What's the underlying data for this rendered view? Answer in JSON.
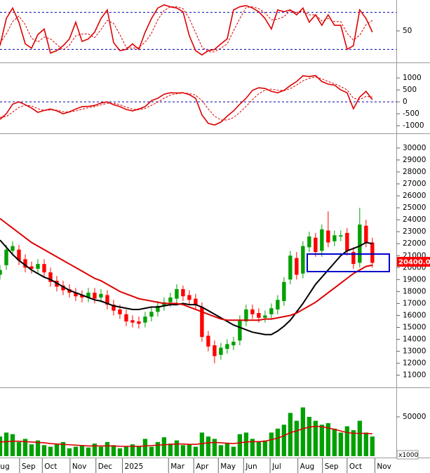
{
  "chart_data": [
    {
      "type": "line",
      "x": [
        0,
        1,
        2,
        3,
        4,
        5,
        6,
        7,
        8,
        9,
        10,
        11,
        12,
        13,
        14,
        15,
        16,
        17,
        18,
        19,
        20,
        21,
        22,
        23,
        24,
        25,
        26,
        27,
        28,
        29,
        30,
        31,
        32,
        33,
        34,
        35,
        36,
        37,
        38,
        39,
        40,
        41,
        42,
        43,
        44,
        45,
        46,
        47,
        48,
        49,
        50,
        51,
        52,
        53,
        54,
        55,
        56,
        57,
        58,
        59
      ],
      "xlim": [
        0,
        62.8
      ],
      "ylim": [
        0,
        100
      ],
      "yticks": [
        50
      ],
      "levels": [
        20,
        80
      ],
      "level_color": "#0000aa",
      "series": [
        {
          "color": "#dd0000",
          "values": [
            26,
            70,
            87,
            64,
            29,
            22,
            44,
            53,
            14,
            18,
            26,
            37,
            64,
            33,
            37,
            48,
            70,
            84,
            31,
            18,
            20,
            29,
            20,
            48,
            70,
            87,
            92,
            89,
            87,
            81,
            42,
            18,
            11,
            18,
            20,
            29,
            37,
            84,
            89,
            91,
            87,
            81,
            70,
            53,
            84,
            81,
            84,
            76,
            87,
            64,
            76,
            59,
            76,
            59,
            59,
            20,
            26,
            84,
            70,
            48
          ]
        },
        {
          "color": "#dd0000",
          "dashed": true,
          "values": [
            30,
            45,
            65,
            74,
            60,
            38,
            32,
            40,
            37,
            28,
            19,
            27,
            42,
            45,
            45,
            39,
            52,
            67,
            62,
            44,
            23,
            22,
            23,
            32,
            46,
            68,
            83,
            89,
            89,
            86,
            70,
            47,
            24,
            16,
            16,
            22,
            29,
            50,
            70,
            88,
            89,
            86,
            79,
            68,
            69,
            73,
            83,
            80,
            82,
            76,
            76,
            66,
            70,
            65,
            65,
            46,
            35,
            43,
            60,
            67
          ]
        }
      ]
    },
    {
      "type": "line",
      "x": [
        0,
        1,
        2,
        3,
        4,
        5,
        6,
        7,
        8,
        9,
        10,
        11,
        12,
        13,
        14,
        15,
        16,
        17,
        18,
        19,
        20,
        21,
        22,
        23,
        24,
        25,
        26,
        27,
        28,
        29,
        30,
        31,
        32,
        33,
        34,
        35,
        36,
        37,
        38,
        39,
        40,
        41,
        42,
        43,
        44,
        45,
        46,
        47,
        48,
        49,
        50,
        51,
        52,
        53,
        54,
        55,
        56,
        57,
        58,
        59
      ],
      "xlim": [
        0,
        62.8
      ],
      "ylim": [
        -1260,
        1560
      ],
      "yticks": [
        1000,
        500,
        0,
        -500,
        -1000
      ],
      "levels": [
        0
      ],
      "level_color": "#0000aa",
      "series": [
        {
          "color": "#dd0000",
          "values": [
            -735,
            -500,
            -100,
            0,
            -120,
            -260,
            -440,
            -360,
            -300,
            -380,
            -500,
            -420,
            -300,
            -200,
            -190,
            -150,
            -50,
            0,
            -120,
            -200,
            -320,
            -380,
            -300,
            -200,
            50,
            150,
            320,
            380,
            370,
            380,
            300,
            150,
            -550,
            -900,
            -970,
            -850,
            -600,
            -380,
            -100,
            150,
            480,
            590,
            560,
            440,
            380,
            480,
            680,
            850,
            1090,
            1060,
            1100,
            850,
            740,
            700,
            500,
            380,
            -290,
            200,
            440,
            90
          ]
        },
        {
          "color": "#dd0000",
          "dashed": true,
          "values": [
            -650,
            -620,
            -430,
            -230,
            -140,
            -170,
            -290,
            -360,
            -340,
            -350,
            -410,
            -430,
            -380,
            -310,
            -250,
            -200,
            -130,
            -60,
            -60,
            -120,
            -220,
            -310,
            -330,
            -280,
            -150,
            -10,
            150,
            280,
            340,
            370,
            350,
            280,
            50,
            -300,
            -600,
            -760,
            -760,
            -660,
            -440,
            -190,
            90,
            340,
            490,
            530,
            490,
            470,
            550,
            700,
            880,
            980,
            1040,
            960,
            850,
            760,
            640,
            500,
            150,
            100,
            230,
            200
          ]
        }
      ]
    },
    {
      "type": "candlestick",
      "x": [
        0,
        1,
        2,
        3,
        4,
        5,
        6,
        7,
        8,
        9,
        10,
        11,
        12,
        13,
        14,
        15,
        16,
        17,
        18,
        19,
        20,
        21,
        22,
        23,
        24,
        25,
        26,
        27,
        28,
        29,
        30,
        31,
        32,
        33,
        34,
        35,
        36,
        37,
        38,
        39,
        40,
        41,
        42,
        43,
        44,
        45,
        46,
        47,
        48,
        49,
        50,
        51,
        52,
        53,
        54,
        55,
        56,
        57,
        58,
        59
      ],
      "xlim": [
        0,
        62.8
      ],
      "ylim": [
        10100,
        31050
      ],
      "yticks": [
        11000,
        12000,
        13000,
        14000,
        15000,
        16000,
        17000,
        18000,
        19000,
        20000,
        21000,
        22000,
        23000,
        24000,
        25000,
        26000,
        27000,
        28000,
        29000,
        30000
      ],
      "up_color": "#00a000",
      "down_color": "#ff0000",
      "open": [
        19400,
        20200,
        21400,
        21500,
        20700,
        20100,
        19900,
        20300,
        19600,
        18900,
        18500,
        18200,
        17900,
        17700,
        17500,
        17900,
        17500,
        17700,
        16900,
        16500,
        16100,
        15600,
        15500,
        15400,
        15900,
        16300,
        16800,
        17100,
        17400,
        18200,
        17700,
        17400,
        16700,
        14300,
        13500,
        12700,
        13200,
        13500,
        13900,
        15500,
        16500,
        16200,
        15800,
        16100,
        16500,
        17200,
        19000,
        20800,
        19500,
        21700,
        22500,
        21400,
        23100,
        22200,
        22600,
        22900,
        21300,
        20400,
        23500,
        22100
      ],
      "high": [
        20200,
        21900,
        22200,
        21900,
        21100,
        20500,
        20700,
        20700,
        20000,
        19300,
        18900,
        18600,
        18300,
        18100,
        18300,
        18300,
        18200,
        18100,
        17300,
        16900,
        16500,
        16000,
        15900,
        16300,
        16700,
        17200,
        17500,
        17900,
        18600,
        18500,
        18100,
        17800,
        17100,
        14700,
        13900,
        13700,
        14000,
        14200,
        16000,
        16900,
        16900,
        16600,
        16400,
        17000,
        17700,
        19200,
        21400,
        21300,
        22200,
        23000,
        22900,
        23600,
        24700,
        23100,
        23100,
        23300,
        21700,
        25000,
        24000,
        22500
      ],
      "low": [
        19000,
        19800,
        21000,
        20200,
        19600,
        19500,
        19500,
        19200,
        18400,
        18000,
        17700,
        17500,
        17200,
        17100,
        17100,
        17000,
        17100,
        16500,
        16000,
        15700,
        15100,
        15000,
        14900,
        15000,
        15500,
        15900,
        16400,
        16700,
        17000,
        17200,
        16900,
        16500,
        13800,
        13000,
        12000,
        12300,
        12800,
        13100,
        13500,
        15100,
        15700,
        15400,
        15400,
        15700,
        16100,
        16800,
        18600,
        19000,
        19100,
        21300,
        20900,
        20900,
        21700,
        21800,
        22200,
        21000,
        19900,
        20000,
        21700,
        20000
      ],
      "close": [
        19800,
        21500,
        21800,
        20600,
        20000,
        19900,
        20300,
        19600,
        18800,
        18400,
        18100,
        17900,
        17600,
        17500,
        17900,
        17400,
        17800,
        16900,
        16400,
        16100,
        15500,
        15400,
        15300,
        15900,
        16300,
        16800,
        17100,
        17500,
        18200,
        17600,
        17300,
        16900,
        14200,
        13400,
        12600,
        13300,
        13600,
        13800,
        15600,
        16500,
        16100,
        15800,
        16000,
        16600,
        17300,
        18800,
        21000,
        19400,
        21800,
        22600,
        21300,
        23200,
        22100,
        22700,
        22700,
        21400,
        20300,
        23600,
        22100,
        20400
      ],
      "series": [
        {
          "color": "#000000",
          "values": [
            22300,
            21700,
            21100,
            20600,
            20200,
            19800,
            19500,
            19200,
            19000,
            18700,
            18400,
            18100,
            17900,
            17700,
            17500,
            17300,
            17200,
            17000,
            16800,
            16700,
            16600,
            16500,
            16500,
            16600,
            16700,
            16700,
            16800,
            16900,
            16900,
            17000,
            16900,
            16900,
            16700,
            16400,
            16100,
            15800,
            15500,
            15200,
            15000,
            14800,
            14600,
            14500,
            14400,
            14400,
            14700,
            15100,
            15600,
            16300,
            17000,
            17800,
            18600,
            19200,
            19800,
            20400,
            21000,
            21400,
            21600,
            21800,
            22100,
            22000
          ]
        },
        {
          "color": "#dd0000",
          "values": [
            24100,
            23700,
            23300,
            22900,
            22500,
            22100,
            21800,
            21500,
            21200,
            20900,
            20600,
            20300,
            20000,
            19700,
            19400,
            19100,
            18900,
            18600,
            18300,
            18000,
            17800,
            17600,
            17400,
            17300,
            17200,
            17100,
            17000,
            17000,
            17000,
            16900,
            16700,
            16500,
            16300,
            16100,
            15900,
            15700,
            15600,
            15600,
            15600,
            15600,
            15600,
            15600,
            15700,
            15700,
            15800,
            15900,
            16000,
            16200,
            16500,
            16800,
            17100,
            17500,
            17900,
            18300,
            18700,
            19100,
            19500,
            19800,
            20100,
            20200
          ]
        }
      ],
      "last_label": "20400.00"
    },
    {
      "type": "bar",
      "x": [
        0,
        1,
        2,
        3,
        4,
        5,
        6,
        7,
        8,
        9,
        10,
        11,
        12,
        13,
        14,
        15,
        16,
        17,
        18,
        19,
        20,
        21,
        22,
        23,
        24,
        25,
        26,
        27,
        28,
        29,
        30,
        31,
        32,
        33,
        34,
        35,
        36,
        37,
        38,
        39,
        40,
        41,
        42,
        43,
        44,
        45,
        46,
        47,
        48,
        49,
        50,
        51,
        52,
        53,
        54,
        55,
        56,
        57,
        58,
        59
      ],
      "xlim": [
        0,
        62.8
      ],
      "ylim": [
        0,
        84800
      ],
      "yticks": [
        50000
      ],
      "color": "#00a000",
      "values": [
        25000,
        30000,
        28000,
        18000,
        22000,
        15000,
        20000,
        14000,
        12000,
        15000,
        18000,
        10000,
        12000,
        14000,
        11000,
        16000,
        12000,
        18000,
        14000,
        10000,
        12000,
        15000,
        13000,
        22000,
        12000,
        18000,
        24000,
        16000,
        20000,
        14000,
        15000,
        12000,
        30000,
        25000,
        22000,
        14000,
        16000,
        12000,
        28000,
        30000,
        22000,
        18000,
        20000,
        30000,
        35000,
        40000,
        55000,
        45000,
        62000,
        50000,
        45000,
        40000,
        42000,
        35000,
        30000,
        38000,
        33000,
        45000,
        30000,
        25000
      ],
      "series": [
        {
          "color": "#dd0000",
          "values": [
            18000,
            18500,
            19000,
            19000,
            18500,
            18000,
            17500,
            17000,
            16000,
            15500,
            15000,
            14500,
            14000,
            13500,
            13000,
            13000,
            13000,
            13000,
            13000,
            12500,
            12500,
            12500,
            12500,
            13000,
            13500,
            14000,
            14500,
            15000,
            15500,
            15500,
            15000,
            15000,
            16000,
            17000,
            17500,
            17000,
            16500,
            16000,
            17000,
            18000,
            18500,
            18500,
            19000,
            21000,
            23000,
            26000,
            30000,
            32000,
            35000,
            37000,
            38000,
            37500,
            36000,
            34000,
            32000,
            30000,
            29000,
            29000,
            29000,
            28500
          ]
        }
      ],
      "xticks": [
        {
          "value": -1.1,
          "label": "Aug"
        },
        {
          "value": 3.1,
          "label": "Sep"
        },
        {
          "value": 6.7,
          "label": "Oct"
        },
        {
          "value": 11.1,
          "label": "Nov"
        },
        {
          "value": 15.2,
          "label": "Dec"
        },
        {
          "value": 19.4,
          "label": "2025"
        },
        {
          "value": 26.7,
          "label": "Mar"
        },
        {
          "value": 30.7,
          "label": "Apr"
        },
        {
          "value": 34.6,
          "label": "May"
        },
        {
          "value": 38.6,
          "label": "Jun"
        },
        {
          "value": 42.8,
          "label": "Jul"
        },
        {
          "value": 47.2,
          "label": "Aug"
        },
        {
          "value": 51.1,
          "label": "Sep"
        },
        {
          "value": 55,
          "label": "Oct"
        },
        {
          "value": 59.4,
          "label": "Nov"
        }
      ],
      "unit_label": "x1000"
    }
  ]
}
